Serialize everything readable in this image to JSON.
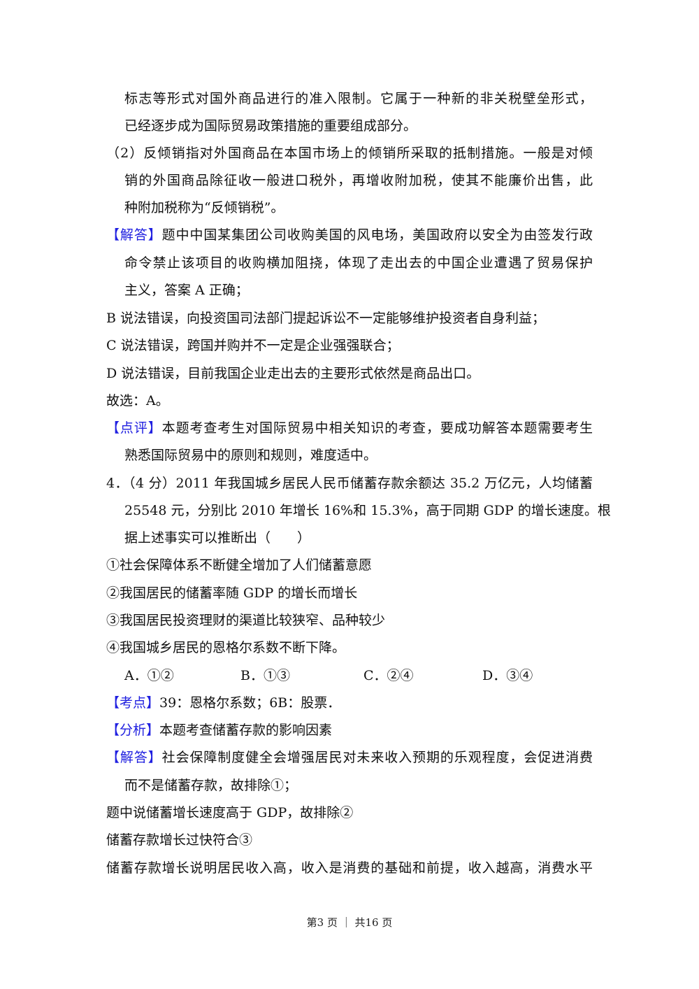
{
  "lines": [
    {
      "text": "标志等形式对国外商品进行的准入限制。它属于一种新的非关税壁垒形式，"
    },
    {
      "text": "已经逐步成为国际贸易政策措施的重要组成部分。"
    },
    {
      "text": "（2）反倾销指对外国商品在本国市场上的倾销所采取的抵制措施。一般是对倾"
    },
    {
      "text": "销的外国商品除征收一般进口税外，再增收附加税，使其不能廉价出售，此"
    },
    {
      "text": "种附加税称为“反倾销税”。"
    },
    {
      "label": "【解答】",
      "text": "题中中国某集团公司收购美国的风电场，美国政府以安全为由签发行政"
    },
    {
      "text": "命令禁止该项目的收购横加阻挠，体现了走出去的中国企业遭遇了贸易保护"
    },
    {
      "text": "主义，答案 A 正确；"
    },
    {
      "text": "B 说法错误，向投资国司法部门提起诉讼不一定能够维护投资者自身利益；"
    },
    {
      "text": "C 说法错误，跨国并购并不一定是企业强强联合；"
    },
    {
      "text": "D 说法错误，目前我国企业走出去的主要形式依然是商品出口。"
    },
    {
      "text": "故选：A。"
    },
    {
      "label": "【点评】",
      "text": "本题考查考生对国际贸易中相关知识的考查，要成功解答本题需要考生"
    },
    {
      "text": "熟悉国际贸易中的原则和规则，难度适中。"
    },
    {
      "text": "4．（4 分）2011 年我国城乡居民人民币储蓄存款余额达 35.2 万亿元，人均储蓄"
    },
    {
      "text": "25548 元，分别比 2010 年增长 16%和 15.3%，高于同期 GDP 的增长速度。根"
    },
    {
      "text": "据上述事实可以推断出（　　）"
    },
    {
      "text": "①社会保障体系不断健全增加了人们储蓄意愿"
    },
    {
      "text": "②我国居民的储蓄率随 GDP 的增长而增长"
    },
    {
      "text": "③我国居民投资理财的渠道比较狭窄、品种较少"
    },
    {
      "text": "④我国城乡居民的恩格尔系数不断下降。"
    },
    {
      "label": "【考点】",
      "text": "39：恩格尔系数；6B：股票．"
    },
    {
      "label": "【分析】",
      "text": "本题考查储蓄存款的影响因素"
    },
    {
      "label": "【解答】",
      "text": "社会保障制度健全会增强居民对未来收入预期的乐观程度，会促进消费"
    },
    {
      "text": "而不是储蓄存款，故排除①；"
    },
    {
      "text": "题中说储蓄增长速度高于 GDP，故排除②"
    },
    {
      "text": "储蓄存款增长过快符合③"
    },
    {
      "text": "储蓄存款增长说明居民收入高，收入是消费的基础和前提，收入越高，消费水平"
    }
  ],
  "options": [
    "A．①②",
    "B．①③",
    "C．②④",
    "D．③④"
  ],
  "footer": "第3 页 ｜ 共16 页",
  "colors": {
    "label": "#2020e0",
    "text": "#111111"
  }
}
